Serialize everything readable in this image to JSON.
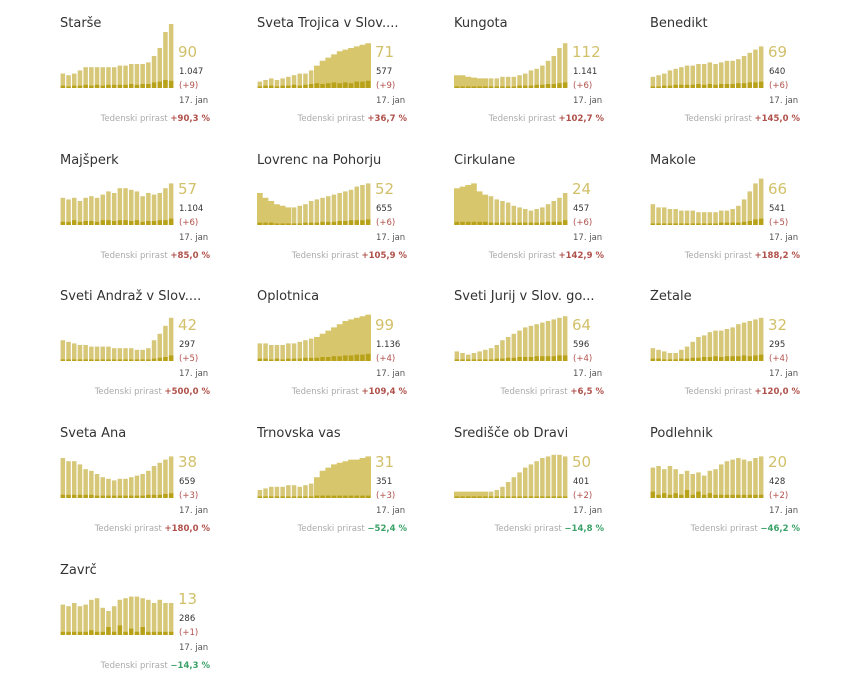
{
  "colors": {
    "bar": "#d6c878",
    "area": "#d7c66c",
    "dark": "#b8a21a",
    "positive": "#b0504a",
    "negative": "#3aa269"
  },
  "footer_label": "Tedenski prirast",
  "date_label": "17. jan",
  "chart_data": [
    {
      "type": "bar",
      "title": "Starše",
      "current": "90",
      "total": "1.047",
      "change": "(+9)",
      "weekly": "+90,3 %",
      "sign": "pos",
      "style": "bars",
      "values": [
        18,
        16,
        18,
        22,
        26,
        26,
        26,
        26,
        26,
        26,
        28,
        28,
        30,
        30,
        30,
        32,
        40,
        50,
        70,
        80
      ],
      "dark": [
        3,
        2,
        3,
        3,
        4,
        3,
        4,
        3,
        4,
        4,
        4,
        4,
        5,
        4,
        5,
        5,
        7,
        8,
        10,
        9
      ]
    },
    {
      "type": "bar",
      "title": "Sveta Trojica v Slov....",
      "current": "71",
      "total": "577",
      "change": "(+9)",
      "weekly": "+36,7 %",
      "sign": "pos",
      "style": "area",
      "values": [
        8,
        10,
        12,
        10,
        12,
        14,
        16,
        18,
        18,
        22,
        28,
        34,
        38,
        42,
        46,
        48,
        50,
        52,
        54,
        56
      ],
      "dark": [
        2,
        3,
        3,
        2,
        3,
        3,
        4,
        3,
        4,
        5,
        6,
        5,
        6,
        7,
        6,
        7,
        6,
        8,
        8,
        9
      ]
    },
    {
      "type": "bar",
      "title": "Kungota",
      "current": "112",
      "total": "1.141",
      "change": "(+6)",
      "weekly": "+102,7 %",
      "sign": "pos",
      "style": "mixed",
      "values": [
        16,
        16,
        14,
        13,
        12,
        12,
        12,
        12,
        14,
        14,
        14,
        16,
        18,
        22,
        24,
        28,
        34,
        40,
        50,
        56
      ],
      "dark": [
        2,
        2,
        2,
        2,
        2,
        2,
        2,
        2,
        2,
        2,
        2,
        3,
        3,
        3,
        4,
        4,
        5,
        5,
        6,
        7
      ]
    },
    {
      "type": "bar",
      "title": "Benedikt",
      "current": "69",
      "total": "640",
      "change": "(+6)",
      "weekly": "+145,0 %",
      "sign": "pos",
      "style": "bars",
      "values": [
        14,
        16,
        18,
        22,
        24,
        26,
        28,
        28,
        30,
        30,
        32,
        30,
        32,
        34,
        34,
        36,
        40,
        44,
        48,
        52
      ],
      "dark": [
        2,
        2,
        3,
        3,
        4,
        4,
        4,
        4,
        5,
        4,
        5,
        4,
        5,
        5,
        5,
        6,
        6,
        7,
        7,
        8
      ]
    },
    {
      "type": "bar",
      "title": "Majšperk",
      "current": "57",
      "total": "1.104",
      "change": "(+6)",
      "weekly": "+85,0 %",
      "sign": "pos",
      "style": "bars",
      "values": [
        34,
        32,
        34,
        30,
        34,
        36,
        34,
        38,
        42,
        40,
        46,
        46,
        44,
        42,
        36,
        40,
        38,
        40,
        46,
        52
      ],
      "dark": [
        4,
        4,
        6,
        4,
        5,
        5,
        4,
        6,
        6,
        5,
        6,
        6,
        5,
        6,
        4,
        5,
        5,
        6,
        6,
        8
      ]
    },
    {
      "type": "bar",
      "title": "Lovrenc na Pohorju",
      "current": "52",
      "total": "655",
      "change": "(+6)",
      "weekly": "+105,9 %",
      "sign": "pos",
      "style": "mixed",
      "values": [
        40,
        34,
        30,
        26,
        24,
        22,
        22,
        24,
        26,
        30,
        32,
        34,
        36,
        38,
        40,
        42,
        44,
        48,
        50,
        52
      ],
      "dark": [
        3,
        3,
        3,
        2,
        2,
        2,
        2,
        2,
        3,
        3,
        3,
        4,
        4,
        4,
        5,
        5,
        6,
        6,
        6,
        7
      ]
    },
    {
      "type": "bar",
      "title": "Cirkulane",
      "current": "24",
      "total": "457",
      "change": "(+6)",
      "weekly": "+142,9 %",
      "sign": "pos",
      "style": "mixed",
      "values": [
        46,
        48,
        50,
        52,
        42,
        38,
        36,
        32,
        30,
        28,
        24,
        22,
        20,
        18,
        20,
        22,
        26,
        30,
        34,
        40
      ],
      "dark": [
        4,
        4,
        4,
        4,
        4,
        4,
        3,
        3,
        3,
        3,
        3,
        3,
        3,
        3,
        3,
        3,
        4,
        4,
        4,
        6
      ]
    },
    {
      "type": "bar",
      "title": "Makole",
      "current": "66",
      "total": "541",
      "change": "(+5)",
      "weekly": "+188,2 %",
      "sign": "pos",
      "style": "bars",
      "values": [
        26,
        22,
        22,
        20,
        20,
        18,
        18,
        18,
        16,
        16,
        16,
        16,
        18,
        18,
        20,
        24,
        32,
        42,
        52,
        58
      ],
      "dark": [
        2,
        2,
        2,
        2,
        2,
        2,
        2,
        2,
        2,
        2,
        2,
        2,
        3,
        3,
        3,
        3,
        4,
        5,
        7,
        8
      ]
    },
    {
      "type": "bar",
      "title": "Sveti Andraž v Slov....",
      "current": "42",
      "total": "297",
      "change": "(+5)",
      "weekly": "+500,0 %",
      "sign": "pos",
      "style": "bars",
      "values": [
        26,
        24,
        22,
        20,
        20,
        18,
        18,
        18,
        18,
        16,
        16,
        16,
        16,
        14,
        14,
        16,
        26,
        34,
        44,
        54
      ],
      "dark": [
        2,
        2,
        2,
        2,
        2,
        2,
        2,
        2,
        2,
        2,
        2,
        2,
        2,
        2,
        2,
        2,
        3,
        4,
        5,
        7
      ]
    },
    {
      "type": "bar",
      "title": "Oplotnica",
      "current": "99",
      "total": "1.136",
      "change": "(+4)",
      "weekly": "+109,4 %",
      "sign": "pos",
      "style": "area",
      "values": [
        22,
        22,
        20,
        20,
        20,
        22,
        22,
        24,
        26,
        28,
        30,
        34,
        38,
        42,
        46,
        50,
        52,
        54,
        56,
        58
      ],
      "dark": [
        3,
        3,
        2,
        3,
        2,
        3,
        3,
        3,
        4,
        4,
        4,
        5,
        5,
        6,
        6,
        7,
        7,
        8,
        8,
        9
      ]
    },
    {
      "type": "bar",
      "title": "Sveti Jurij v Slov. go...",
      "current": "64",
      "total": "596",
      "change": "(+4)",
      "weekly": "+6,5 %",
      "sign": "pos",
      "style": "bars",
      "values": [
        12,
        10,
        8,
        10,
        12,
        14,
        16,
        20,
        26,
        30,
        34,
        38,
        42,
        44,
        46,
        48,
        50,
        52,
        54,
        56
      ],
      "dark": [
        2,
        2,
        2,
        2,
        2,
        2,
        2,
        3,
        3,
        4,
        4,
        5,
        5,
        5,
        6,
        6,
        6,
        6,
        7,
        7
      ]
    },
    {
      "type": "bar",
      "title": "Žetale",
      "current": "32",
      "total": "295",
      "change": "(+4)",
      "weekly": "+120,0 %",
      "sign": "pos",
      "style": "bars",
      "values": [
        16,
        14,
        12,
        10,
        10,
        14,
        18,
        24,
        30,
        32,
        36,
        38,
        38,
        40,
        42,
        46,
        48,
        50,
        52,
        54
      ],
      "dark": [
        3,
        3,
        2,
        2,
        2,
        3,
        3,
        4,
        4,
        5,
        5,
        6,
        5,
        6,
        6,
        6,
        7,
        6,
        7,
        8
      ]
    },
    {
      "type": "bar",
      "title": "Sveta Ana",
      "current": "38",
      "total": "659",
      "change": "(+3)",
      "weekly": "+180,0 %",
      "sign": "pos",
      "style": "bars",
      "values": [
        50,
        46,
        46,
        42,
        36,
        34,
        30,
        26,
        24,
        22,
        24,
        24,
        26,
        28,
        30,
        34,
        40,
        44,
        48,
        52
      ],
      "dark": [
        4,
        4,
        4,
        4,
        4,
        4,
        3,
        3,
        3,
        3,
        3,
        3,
        3,
        3,
        3,
        4,
        4,
        4,
        5,
        6
      ]
    },
    {
      "type": "bar",
      "title": "Trnovska vas",
      "current": "31",
      "total": "351",
      "change": "(+3)",
      "weekly": "−52,4 %",
      "sign": "neg",
      "style": "area",
      "values": [
        10,
        12,
        14,
        14,
        14,
        16,
        16,
        14,
        16,
        18,
        26,
        34,
        38,
        42,
        44,
        46,
        48,
        48,
        50,
        52
      ],
      "dark": [
        2,
        2,
        2,
        2,
        2,
        2,
        2,
        2,
        2,
        2,
        3,
        3,
        3,
        3,
        3,
        3,
        3,
        3,
        3,
        3
      ]
    },
    {
      "type": "bar",
      "title": "Središče ob Dravi",
      "current": "50",
      "total": "401",
      "change": "(+2)",
      "weekly": "−14,8 %",
      "sign": "neg",
      "style": "mixed",
      "values": [
        8,
        8,
        8,
        8,
        8,
        8,
        8,
        10,
        14,
        20,
        26,
        32,
        38,
        42,
        46,
        50,
        52,
        54,
        54,
        52
      ],
      "dark": [
        2,
        2,
        2,
        2,
        2,
        2,
        2,
        2,
        2,
        2,
        2,
        2,
        2,
        2,
        2,
        2,
        2,
        2,
        2,
        2
      ]
    },
    {
      "type": "bar",
      "title": "Podlehnik",
      "current": "20",
      "total": "428",
      "change": "(+2)",
      "weekly": "−46,2 %",
      "sign": "neg",
      "style": "bars",
      "values": [
        38,
        40,
        36,
        40,
        36,
        30,
        34,
        30,
        32,
        28,
        34,
        36,
        42,
        46,
        48,
        50,
        48,
        46,
        50,
        52
      ],
      "dark": [
        8,
        4,
        6,
        4,
        6,
        4,
        10,
        4,
        8,
        4,
        6,
        4,
        4,
        4,
        4,
        4,
        4,
        4,
        4,
        4
      ]
    },
    {
      "type": "bar",
      "title": "Zavrč",
      "current": "13",
      "total": "286",
      "change": "(+1)",
      "weekly": "−14,3 %",
      "sign": "neg",
      "style": "bars",
      "values": [
        38,
        36,
        40,
        36,
        38,
        44,
        46,
        34,
        30,
        36,
        44,
        46,
        48,
        48,
        46,
        44,
        40,
        44,
        40,
        40
      ],
      "dark": [
        4,
        4,
        4,
        4,
        4,
        6,
        4,
        4,
        10,
        4,
        12,
        4,
        8,
        4,
        10,
        4,
        4,
        4,
        4,
        4
      ]
    }
  ]
}
